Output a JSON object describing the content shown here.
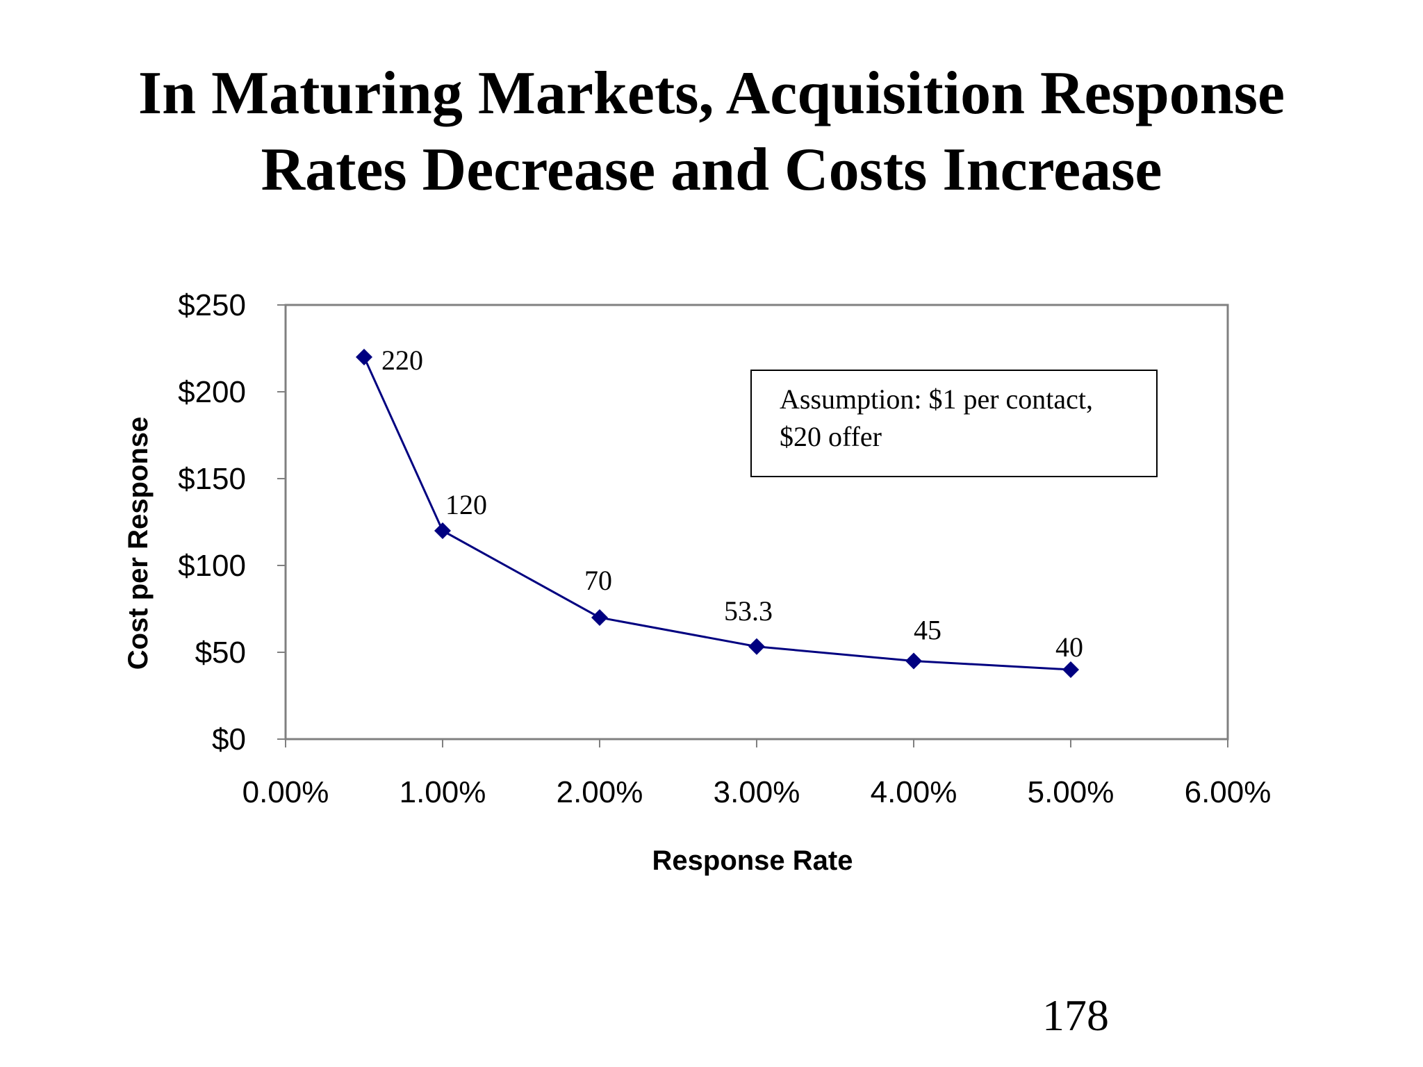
{
  "slide": {
    "title_line1": "In Maturing Markets, Acquisition Response",
    "title_line2": "Rates Decrease and Costs Increase",
    "page_number": "178"
  },
  "chart_data": {
    "type": "line",
    "title": "In Maturing Markets, Acquisition Response Rates Decrease and Costs Increase",
    "xlabel": "Response Rate",
    "ylabel": "Cost per Response",
    "x_format": "percent",
    "y_format": "currency",
    "xlim": [
      0,
      0.06
    ],
    "ylim": [
      0,
      250
    ],
    "x_ticks": [
      0,
      0.01,
      0.02,
      0.03,
      0.04,
      0.05,
      0.06
    ],
    "x_tick_labels": [
      "0.00%",
      "1.00%",
      "2.00%",
      "3.00%",
      "4.00%",
      "5.00%",
      "6.00%"
    ],
    "y_ticks": [
      0,
      50,
      100,
      150,
      200,
      250
    ],
    "y_tick_labels": [
      "$0",
      "$50",
      "$100",
      "$150",
      "$200",
      "$250"
    ],
    "grid": false,
    "series": [
      {
        "color": "#000080",
        "marker": "diamond",
        "x": [
          0.005,
          0.01,
          0.02,
          0.03,
          0.04,
          0.05
        ],
        "y": [
          220,
          120,
          70,
          53.3,
          45,
          40
        ],
        "data_labels": [
          "220",
          "120",
          "70",
          "53.3",
          "45",
          "40"
        ]
      }
    ],
    "annotations": [
      {
        "line1": "Assumption: $1 per contact,",
        "line2": "$20 offer"
      }
    ]
  }
}
